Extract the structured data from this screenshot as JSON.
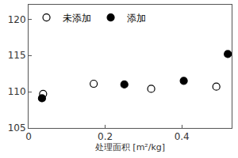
{
  "chart_data": {
    "type": "scatter",
    "x_label": "处理面积 [m²/kg]",
    "series": [
      {
        "name": "未添加",
        "color": "#000000",
        "marker": "circle-open",
        "x": [
          0.038,
          0.17,
          0.32,
          0.49
        ],
        "values": [
          109.7,
          111.1,
          110.4,
          110.7
        ]
      },
      {
        "name": "添加",
        "color": "#000000",
        "marker": "circle",
        "x": [
          0.035,
          0.25,
          0.405,
          0.52
        ],
        "values": [
          109.1,
          111.0,
          111.5,
          115.2
        ]
      }
    ],
    "xlim": [
      0,
      0.53
    ],
    "xticks": [
      0,
      0.2,
      0.4
    ],
    "ylim": [
      105,
      122
    ],
    "yticks": [
      105,
      110,
      115,
      120
    ],
    "grid": false,
    "legend": "top left"
  }
}
